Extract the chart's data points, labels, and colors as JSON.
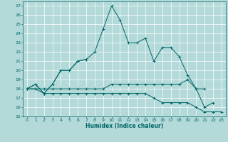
{
  "xlabel": "Humidex (Indice chaleur)",
  "xlim": [
    -0.5,
    23.5
  ],
  "ylim": [
    15,
    27.5
  ],
  "yticks": [
    15,
    16,
    17,
    18,
    19,
    20,
    21,
    22,
    23,
    24,
    25,
    26,
    27
  ],
  "xticks": [
    0,
    1,
    2,
    3,
    4,
    5,
    6,
    7,
    8,
    9,
    10,
    11,
    12,
    13,
    14,
    15,
    16,
    17,
    18,
    19,
    20,
    21,
    22,
    23
  ],
  "bg_color": "#b3d9d9",
  "line_color": "#006666",
  "grid_color": "#ffffff",
  "line1_y": [
    18.0,
    18.5,
    17.5,
    18.5,
    20.0,
    20.0,
    21.0,
    21.2,
    22.0,
    24.5,
    27.0,
    25.5,
    23.0,
    23.0,
    23.5,
    21.0,
    22.5,
    22.5,
    21.5,
    19.5,
    18.0,
    16.0,
    16.5,
    null
  ],
  "line2_y": [
    18.0,
    18.5,
    17.5,
    18.5,
    20.0,
    20.0,
    21.0,
    21.2,
    null,
    null,
    null,
    null,
    null,
    null,
    null,
    null,
    null,
    null,
    null,
    null,
    null,
    null,
    null,
    null
  ],
  "line3_y": [
    18.0,
    18.0,
    17.5,
    17.5,
    17.5,
    17.5,
    17.5,
    17.5,
    17.5,
    17.5,
    17.5,
    17.5,
    17.5,
    17.5,
    17.5,
    17.0,
    16.5,
    16.5,
    16.5,
    16.5,
    16.0,
    15.5,
    15.5,
    15.5
  ],
  "line4_y": [
    18.0,
    18.0,
    18.0,
    18.0,
    18.0,
    18.0,
    18.0,
    18.0,
    18.0,
    18.0,
    18.5,
    18.5,
    18.5,
    18.5,
    18.5,
    18.5,
    18.5,
    18.5,
    18.5,
    19.0,
    18.0,
    18.0,
    null,
    null
  ]
}
